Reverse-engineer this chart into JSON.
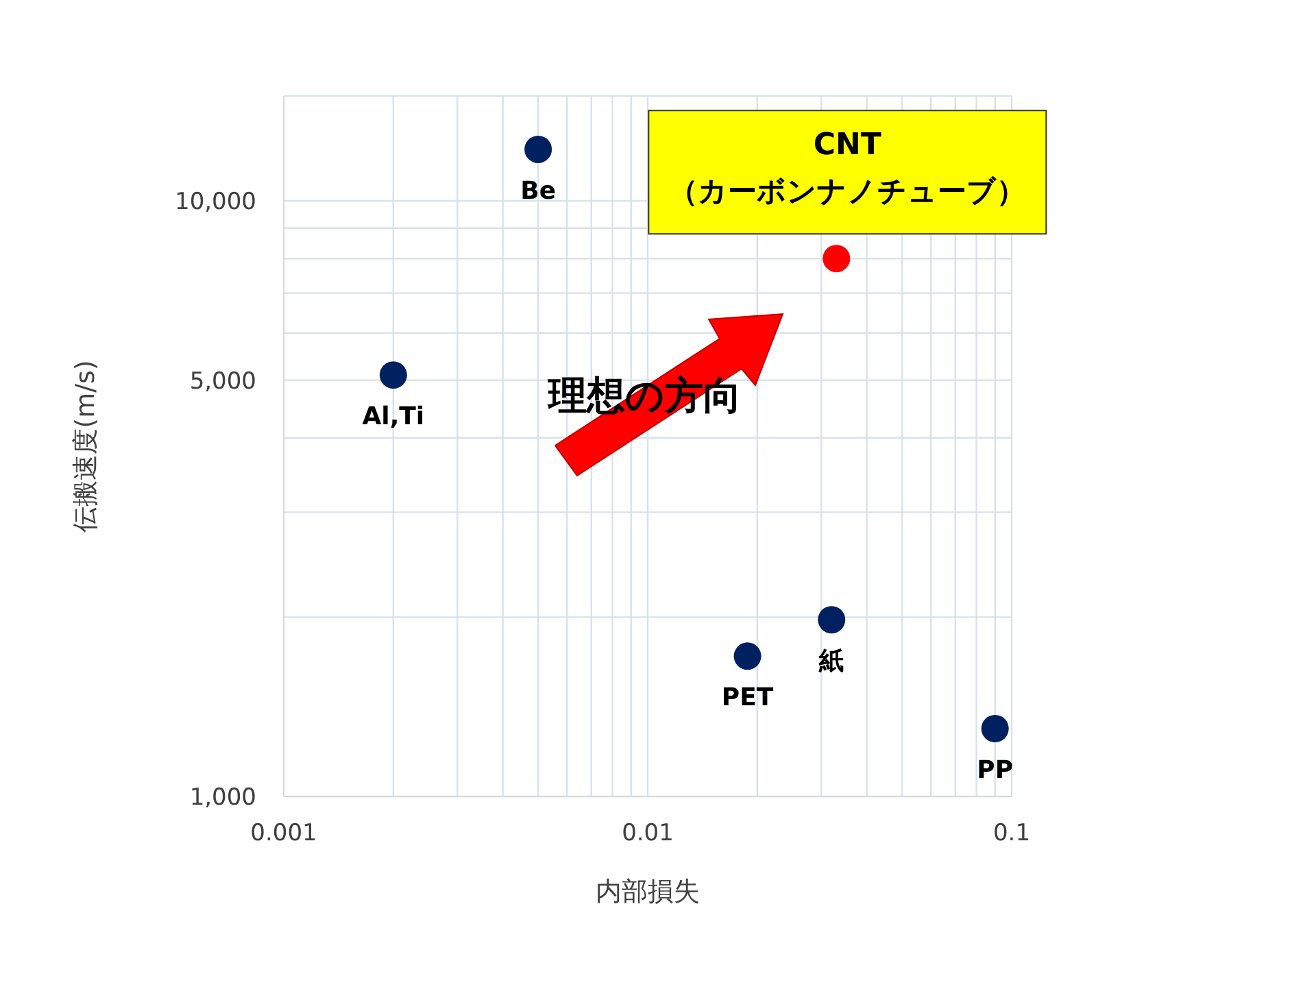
{
  "chart_data": {
    "type": "scatter",
    "xlabel": "内部損失",
    "ylabel": "伝搬速度(m/s)",
    "log": "xy",
    "grid": true,
    "marker": "circle",
    "xlim": [
      0.001,
      0.1
    ],
    "ylim": [
      1000,
      15000
    ],
    "xticks": [
      0.001,
      {
        "value": 0.002,
        "label": null
      },
      {
        "value": 0.003,
        "label": null
      },
      {
        "value": 0.004,
        "label": null
      },
      {
        "value": 0.005,
        "label": null
      },
      {
        "value": 0.006,
        "label": null
      },
      {
        "value": 0.007,
        "label": null
      },
      {
        "value": 0.008,
        "label": null
      },
      {
        "value": 0.009,
        "label": null
      },
      0.01,
      {
        "value": 0.02,
        "label": null
      },
      {
        "value": 0.03,
        "label": null
      },
      {
        "value": 0.04,
        "label": null
      },
      {
        "value": 0.05,
        "label": null
      },
      {
        "value": 0.06,
        "label": null
      },
      {
        "value": 0.07,
        "label": null
      },
      {
        "value": 0.08,
        "label": null
      },
      {
        "value": 0.09,
        "label": null
      },
      0.1
    ],
    "yticks": [
      {
        "value": 1000,
        "label": "1,000"
      },
      {
        "value": 2000,
        "label": null
      },
      {
        "value": 3000,
        "label": null
      },
      {
        "value": 4000,
        "label": null
      },
      {
        "value": 5000,
        "label": "5,000"
      },
      {
        "value": 6000,
        "label": null
      },
      {
        "value": 7000,
        "label": null
      },
      {
        "value": 8000,
        "label": null
      },
      {
        "value": 9000,
        "label": null
      },
      {
        "value": 10000,
        "label": "10,000"
      }
    ],
    "series": [
      {
        "x": [
          0.005,
          0.002,
          0.0188,
          0.032,
          0.09
        ],
        "values": [
          12200,
          5100,
          1720,
          1980,
          1300
        ],
        "color": "#002060"
      },
      {
        "x": [
          0.033
        ],
        "values": [
          8000
        ],
        "color": "#ff0000"
      }
    ],
    "annotations": [
      {
        "text": "Be",
        "x": 0.005,
        "y": 12200
      },
      {
        "text": "Al,Ti",
        "x": 0.002,
        "y": 5100
      },
      {
        "text": "PET",
        "x": 0.0188,
        "y": 1720
      },
      {
        "text": "紙",
        "x": 0.032,
        "y": 1980
      },
      {
        "text": "PP",
        "x": 0.09,
        "y": 1300
      },
      {
        "text": "CNT\n（カーボンナノチューブ）",
        "x": 0.033,
        "y": 8000
      },
      "理想の方向"
    ]
  }
}
